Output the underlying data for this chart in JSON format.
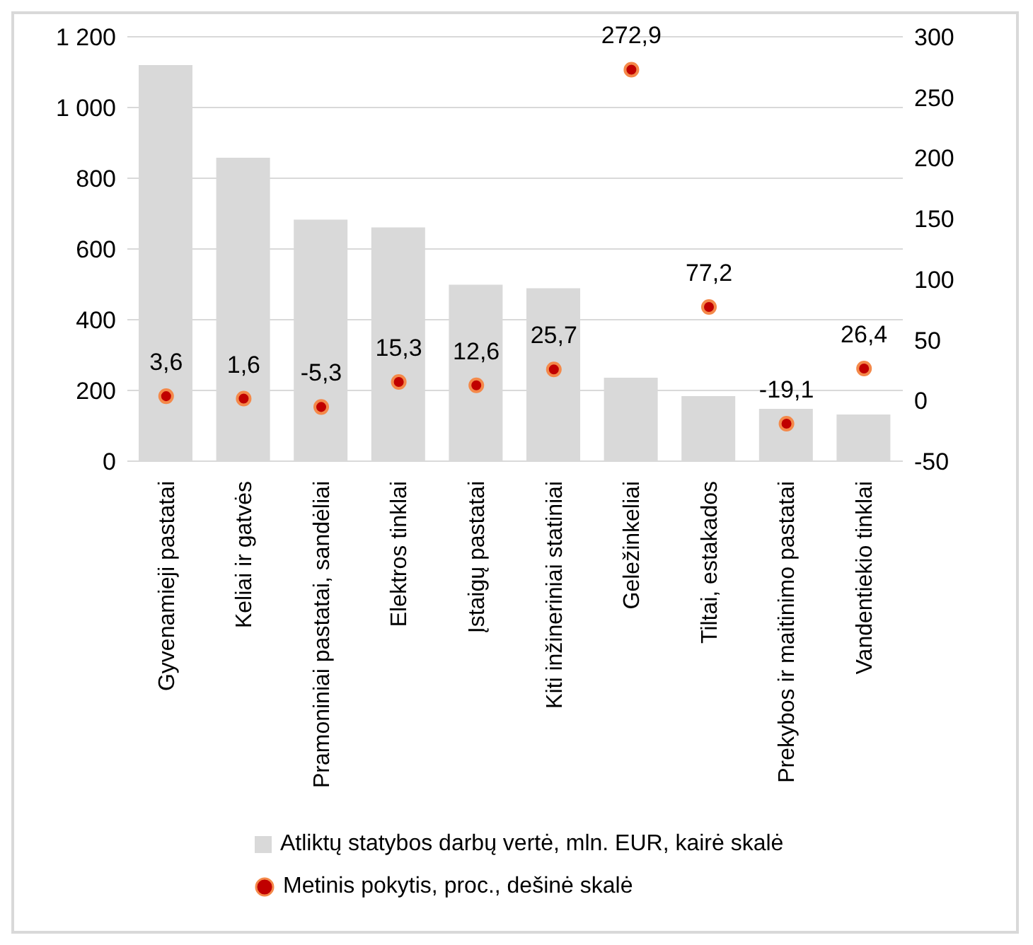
{
  "chart_data": {
    "type": "bar",
    "categories": [
      "Gyvenamieji pastatai",
      "Keliai ir gatvės",
      "Pramoniniai pastatai, sandėliai",
      "Elektros tinklai",
      "Įstaigų pastatai",
      "Kiti inžineriniai statiniai",
      "Geležinkeliai",
      "Tiltai, estakados",
      "Prekybos ir maitinimo pastatai",
      "Vandentiekio tinklai"
    ],
    "series": [
      {
        "name": "Atliktų statybos darbų vertė, mln. EUR, kairė skalė",
        "color": "#d9d9d9",
        "values": [
          1120,
          858,
          683,
          661,
          499,
          489,
          236,
          184,
          148,
          132
        ]
      },
      {
        "type": "scatter",
        "axis": "y2",
        "name": "Metinis pokytis, proc., dešinė skalė",
        "color": "#c00000",
        "values": [
          3.6,
          1.6,
          -5.3,
          15.3,
          12.6,
          25.7,
          272.9,
          77.2,
          -19.1,
          26.4
        ],
        "value_labels": [
          "3,6",
          "1,6",
          "-5,3",
          "15,3",
          "12,6",
          "25,7",
          "272,9",
          "77,2",
          "-19,1",
          "26,4"
        ]
      }
    ],
    "ylim": [
      0,
      1200
    ],
    "yticks": [
      0,
      200,
      400,
      600,
      800,
      {
        "value": 1000,
        "label": "1 000"
      },
      {
        "value": 1200,
        "label": "1 200"
      }
    ],
    "y2lim": [
      -50,
      300
    ],
    "y2ticks": [
      -50,
      0,
      50,
      100,
      150,
      200,
      250,
      300
    ],
    "grid": "y",
    "legend": "bottom",
    "marker": "circle"
  }
}
